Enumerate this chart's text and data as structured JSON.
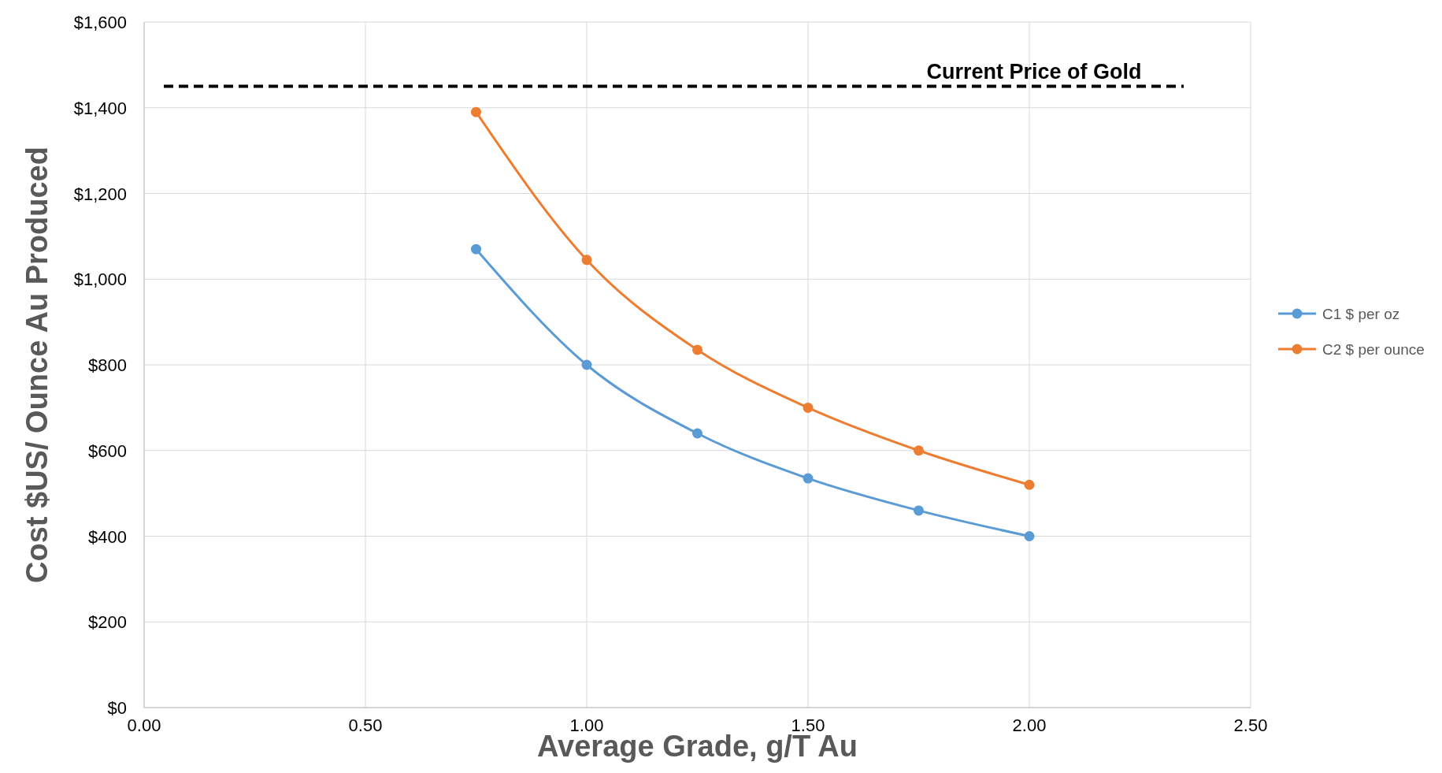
{
  "chart_data": {
    "type": "line",
    "xlabel": "Average Grade, g/T Au",
    "ylabel": "Cost $US/ Ounce Au Produced",
    "x": [
      0.75,
      1.0,
      1.25,
      1.5,
      1.75,
      2.0
    ],
    "series": [
      {
        "name": "C1 $ per oz",
        "color": "#5b9bd5",
        "values": [
          1070,
          800,
          640,
          535,
          460,
          400
        ]
      },
      {
        "name": "C2 $ per ounce",
        "color": "#ed7d31",
        "values": [
          1390,
          1045,
          835,
          700,
          600,
          520
        ]
      }
    ],
    "xlim": [
      0,
      2.5
    ],
    "xticks": [
      {
        "value": 0,
        "label": "0.00"
      },
      {
        "value": 0.5,
        "label": "0.50"
      },
      {
        "value": 1,
        "label": "1.00"
      },
      {
        "value": 1.5,
        "label": "1.50"
      },
      {
        "value": 2,
        "label": "2.00"
      },
      {
        "value": 2.5,
        "label": "2.50"
      }
    ],
    "ylim": [
      0,
      1600
    ],
    "yticks": [
      {
        "value": 0,
        "label": "$0"
      },
      {
        "value": 200,
        "label": "$200"
      },
      {
        "value": 400,
        "label": "$400"
      },
      {
        "value": 600,
        "label": "$600"
      },
      {
        "value": 800,
        "label": "$800"
      },
      {
        "value": 1000,
        "label": "$1,000"
      },
      {
        "value": 1200,
        "label": "$1,200"
      },
      {
        "value": 1400,
        "label": "$1,400"
      },
      {
        "value": 1600,
        "label": "$1,600"
      }
    ],
    "ref_lines": [
      {
        "axis": "y",
        "value": 1450,
        "label": "Current Price of Gold",
        "color": "#000000",
        "line_style": "dashed"
      }
    ],
    "grid": true,
    "legend": "right",
    "marker": "circle",
    "line_style": "solid"
  }
}
